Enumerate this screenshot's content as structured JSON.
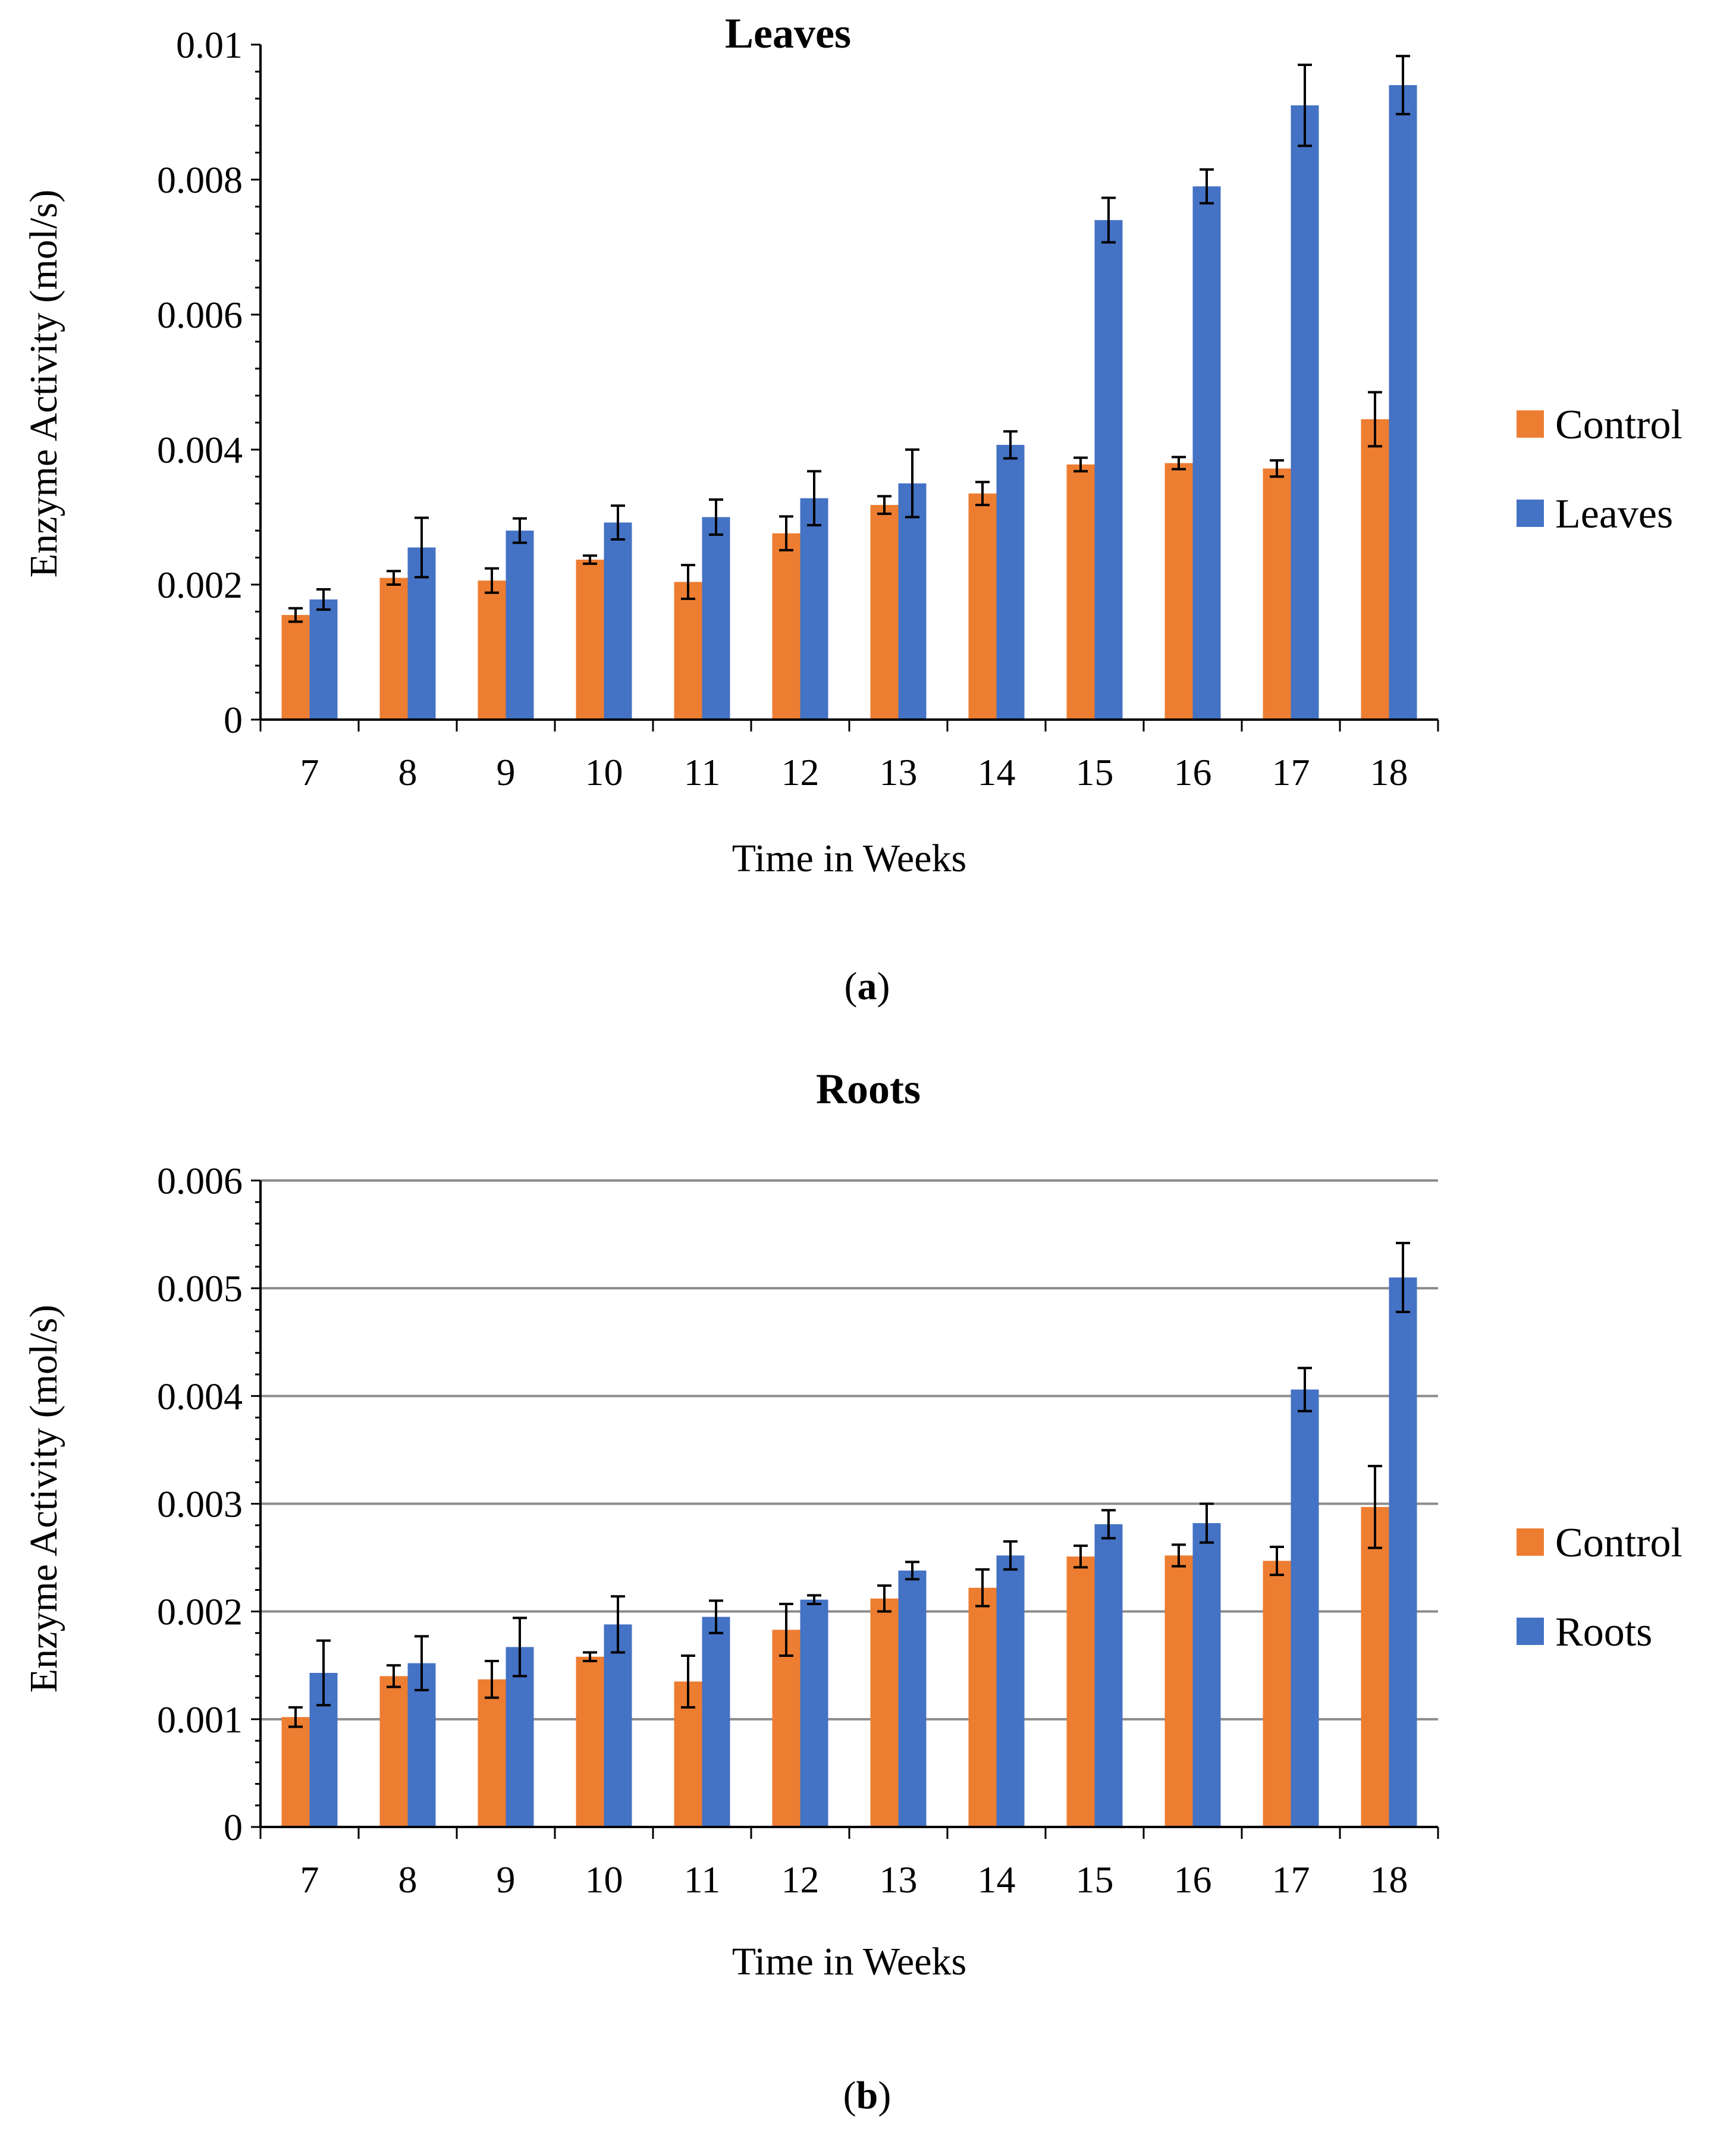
{
  "colors": {
    "control": "#ED7D31",
    "treatment": "#4472C4",
    "axis": "#000000",
    "grid": "#8c8c8c"
  },
  "chart_data": [
    {
      "type": "bar",
      "title": "Leaves",
      "xlabel": "Time in Weeks",
      "ylabel": "Enzyme Activity (mol/s)",
      "categories": [
        "7",
        "8",
        "9",
        "10",
        "11",
        "12",
        "13",
        "14",
        "15",
        "16",
        "17",
        "18"
      ],
      "ylim": [
        0,
        0.01
      ],
      "yticks": [
        0,
        0.002,
        0.004,
        0.006,
        0.008,
        0.01
      ],
      "ytick_labels": [
        "0",
        "0.002",
        "0.004",
        "0.006",
        "0.008",
        "0.01"
      ],
      "minor_ticks_per_major": 5,
      "grid": false,
      "legend_position": "right",
      "caption": {
        "open": "(",
        "letter": "a",
        "close": ")"
      },
      "series": [
        {
          "name": "Control",
          "color": "#ED7D31",
          "values": [
            0.00155,
            0.0021,
            0.00206,
            0.00237,
            0.00204,
            0.00276,
            0.00318,
            0.00335,
            0.00378,
            0.0038,
            0.00372,
            0.00445
          ],
          "errors": [
            0.0001,
            0.0001,
            0.00018,
            6e-05,
            0.00025,
            0.00025,
            0.00013,
            0.00017,
            0.0001,
            9e-05,
            0.00012,
            0.0004
          ]
        },
        {
          "name": "Leaves",
          "color": "#4472C4",
          "values": [
            0.00178,
            0.00255,
            0.0028,
            0.00292,
            0.003,
            0.00328,
            0.0035,
            0.00407,
            0.0074,
            0.0079,
            0.0091,
            0.0094
          ],
          "errors": [
            0.00015,
            0.00044,
            0.00018,
            0.00025,
            0.00026,
            0.0004,
            0.0005,
            0.0002,
            0.00033,
            0.00025,
            0.0006,
            0.00043
          ]
        }
      ]
    },
    {
      "type": "bar",
      "title": "Roots",
      "xlabel": "Time in Weeks",
      "ylabel": "Enzyme Activity (mol/s)",
      "categories": [
        "7",
        "8",
        "9",
        "10",
        "11",
        "12",
        "13",
        "14",
        "15",
        "16",
        "17",
        "18"
      ],
      "ylim": [
        0,
        0.006
      ],
      "yticks": [
        0,
        0.001,
        0.002,
        0.003,
        0.004,
        0.005,
        0.006
      ],
      "ytick_labels": [
        "0",
        "0.001",
        "0.002",
        "0.003",
        "0.004",
        "0.005",
        "0.006"
      ],
      "minor_ticks_per_major": 5,
      "grid": true,
      "legend_position": "right",
      "caption": {
        "open": "(",
        "letter": "b",
        "close": ")"
      },
      "series": [
        {
          "name": "Control",
          "color": "#ED7D31",
          "values": [
            0.00102,
            0.0014,
            0.00137,
            0.00158,
            0.00135,
            0.00183,
            0.00212,
            0.00222,
            0.00251,
            0.00252,
            0.00247,
            0.00297
          ],
          "errors": [
            9e-05,
            0.0001,
            0.00017,
            4e-05,
            0.00024,
            0.00024,
            0.00012,
            0.00017,
            0.0001,
            0.0001,
            0.00013,
            0.00038
          ]
        },
        {
          "name": "Roots",
          "color": "#4472C4",
          "values": [
            0.00143,
            0.00152,
            0.00167,
            0.00188,
            0.00195,
            0.00211,
            0.00238,
            0.00252,
            0.00281,
            0.00282,
            0.00406,
            0.0051
          ],
          "errors": [
            0.0003,
            0.00025,
            0.00027,
            0.00026,
            0.00015,
            4e-05,
            8e-05,
            0.00013,
            0.00013,
            0.00018,
            0.0002,
            0.00032
          ]
        }
      ]
    }
  ]
}
